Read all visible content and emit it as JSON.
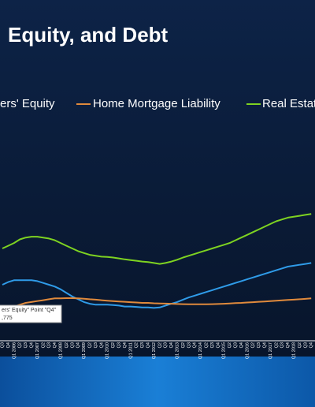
{
  "chart_data": {
    "type": "line",
    "title": "Equity, and Debt",
    "categories": [
      "Q3",
      "Q4",
      "Q1 2006",
      "Q2",
      "Q3",
      "Q4",
      "Q1 2007",
      "Q2",
      "Q3",
      "Q4",
      "Q1 2008",
      "Q2",
      "Q3",
      "Q4",
      "Q1 2009",
      "Q2",
      "Q3",
      "Q4",
      "Q1 2010",
      "Q2",
      "Q3",
      "Q4",
      "Q1 2011",
      "Q2",
      "Q3",
      "Q4",
      "Q1 2012",
      "Q2",
      "Q3",
      "Q4",
      "Q1 2013",
      "Q2",
      "Q3",
      "Q4",
      "Q1 2014",
      "Q2",
      "Q3",
      "Q4",
      "Q1 2015",
      "Q2",
      "Q3",
      "Q4",
      "Q1 2016",
      "Q2",
      "Q3",
      "Q4",
      "Q1 2017",
      "Q2",
      "Q3",
      "Q4",
      "Q1 2018",
      "Q2",
      "Q3",
      "Q4"
    ],
    "series": [
      {
        "name": "ers' Equity",
        "color": "#2f9be8",
        "values": [
          30,
          31.5,
          32.5,
          32.5,
          32.5,
          32.5,
          32,
          31,
          30,
          29,
          27.5,
          25.5,
          23.5,
          22,
          20.5,
          19.5,
          19,
          19,
          19,
          18.8,
          18.5,
          18,
          18,
          17.8,
          17.5,
          17.5,
          17.2,
          17.5,
          18.5,
          19.5,
          20.5,
          21.8,
          23,
          24,
          25,
          26,
          27,
          28,
          29,
          30,
          31,
          32,
          33,
          34,
          35,
          36,
          37,
          38,
          39,
          40,
          40.5,
          41,
          41.5,
          42
        ]
      },
      {
        "name": "Home Mortgage Liability",
        "color": "#e08a3c",
        "values": [
          17,
          17.5,
          18,
          19,
          20,
          20.5,
          21,
          21.5,
          22,
          22.5,
          22.5,
          22.6,
          22.6,
          22.5,
          22.3,
          22,
          21.8,
          21.5,
          21.2,
          21,
          20.8,
          20.6,
          20.4,
          20.2,
          20,
          20,
          19.8,
          19.7,
          19.6,
          19.5,
          19.4,
          19.3,
          19.2,
          19.2,
          19.2,
          19.2,
          19.3,
          19.4,
          19.5,
          19.7,
          19.9,
          20,
          20.2,
          20.4,
          20.6,
          20.8,
          21,
          21.2,
          21.4,
          21.6,
          21.8,
          22,
          22.2,
          22.5
        ]
      },
      {
        "name": "Real Estat",
        "color": "#7ed321",
        "values": [
          50,
          51.5,
          53,
          55,
          56,
          56.5,
          56.5,
          56,
          55.5,
          54.5,
          53,
          51.5,
          50,
          48.5,
          47.5,
          46.5,
          46,
          45.5,
          45.3,
          45,
          44.5,
          44,
          43.6,
          43.2,
          42.8,
          42.5,
          42,
          41.5,
          42,
          42.8,
          43.8,
          45,
          46,
          47,
          48,
          49,
          50,
          51,
          52,
          53,
          54.5,
          56,
          57.5,
          59,
          60.5,
          62,
          63.5,
          65,
          66,
          67,
          67.5,
          68,
          68.5,
          69
        ]
      }
    ],
    "ylim": [
      0,
      100
    ],
    "tooltip": {
      "lines": [
        "ers' Equity\" Point \"Q4\"",
        ",775"
      ]
    }
  }
}
